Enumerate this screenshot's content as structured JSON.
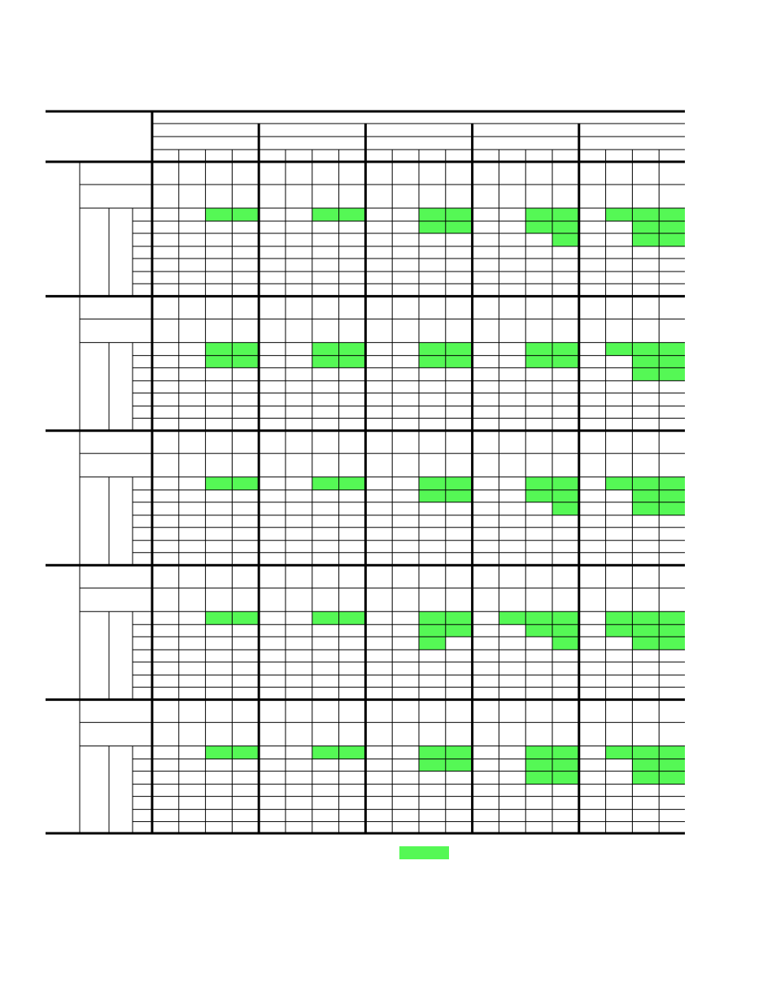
{
  "colors": {
    "highlight": "#55F855",
    "grid_line": "#000000",
    "background": "#FFFFFF"
  },
  "table": {
    "column_groups": 5,
    "sub_columns_per_group": 4,
    "row_blocks": [
      {
        "highlighted": [
          [
            0,
            2
          ],
          [
            0,
            3
          ],
          [
            0,
            6
          ],
          [
            0,
            7
          ],
          [
            0,
            10
          ],
          [
            0,
            11
          ],
          [
            0,
            14
          ],
          [
            0,
            15
          ],
          [
            0,
            17
          ],
          [
            0,
            18
          ],
          [
            0,
            19
          ],
          [
            1,
            10
          ],
          [
            1,
            11
          ],
          [
            1,
            14
          ],
          [
            1,
            15
          ],
          [
            1,
            18
          ],
          [
            1,
            19
          ],
          [
            2,
            15
          ],
          [
            2,
            18
          ],
          [
            2,
            19
          ]
        ]
      },
      {
        "highlighted": [
          [
            0,
            2
          ],
          [
            0,
            3
          ],
          [
            0,
            6
          ],
          [
            0,
            7
          ],
          [
            0,
            10
          ],
          [
            0,
            11
          ],
          [
            0,
            14
          ],
          [
            0,
            15
          ],
          [
            0,
            17
          ],
          [
            0,
            18
          ],
          [
            0,
            19
          ],
          [
            1,
            2
          ],
          [
            1,
            3
          ],
          [
            1,
            6
          ],
          [
            1,
            7
          ],
          [
            1,
            10
          ],
          [
            1,
            11
          ],
          [
            1,
            14
          ],
          [
            1,
            15
          ],
          [
            1,
            18
          ],
          [
            1,
            19
          ],
          [
            2,
            18
          ],
          [
            2,
            19
          ]
        ]
      },
      {
        "highlighted": [
          [
            0,
            2
          ],
          [
            0,
            3
          ],
          [
            0,
            6
          ],
          [
            0,
            7
          ],
          [
            0,
            10
          ],
          [
            0,
            11
          ],
          [
            0,
            14
          ],
          [
            0,
            15
          ],
          [
            0,
            17
          ],
          [
            0,
            18
          ],
          [
            0,
            19
          ],
          [
            1,
            10
          ],
          [
            1,
            11
          ],
          [
            1,
            14
          ],
          [
            1,
            15
          ],
          [
            1,
            18
          ],
          [
            1,
            19
          ],
          [
            2,
            15
          ],
          [
            2,
            18
          ],
          [
            2,
            19
          ]
        ]
      },
      {
        "highlighted": [
          [
            0,
            2
          ],
          [
            0,
            3
          ],
          [
            0,
            6
          ],
          [
            0,
            7
          ],
          [
            0,
            10
          ],
          [
            0,
            11
          ],
          [
            0,
            13
          ],
          [
            0,
            14
          ],
          [
            0,
            15
          ],
          [
            0,
            17
          ],
          [
            0,
            18
          ],
          [
            0,
            19
          ],
          [
            1,
            10
          ],
          [
            1,
            11
          ],
          [
            1,
            14
          ],
          [
            1,
            15
          ],
          [
            1,
            17
          ],
          [
            1,
            18
          ],
          [
            1,
            19
          ],
          [
            2,
            10
          ],
          [
            2,
            15
          ],
          [
            2,
            18
          ],
          [
            2,
            19
          ]
        ]
      },
      {
        "highlighted": [
          [
            0,
            2
          ],
          [
            0,
            3
          ],
          [
            0,
            6
          ],
          [
            0,
            7
          ],
          [
            0,
            10
          ],
          [
            0,
            11
          ],
          [
            0,
            14
          ],
          [
            0,
            15
          ],
          [
            0,
            17
          ],
          [
            0,
            18
          ],
          [
            0,
            19
          ],
          [
            1,
            10
          ],
          [
            1,
            11
          ],
          [
            1,
            14
          ],
          [
            1,
            15
          ],
          [
            1,
            18
          ],
          [
            1,
            19
          ],
          [
            2,
            14
          ],
          [
            2,
            15
          ],
          [
            2,
            18
          ],
          [
            2,
            19
          ]
        ]
      }
    ]
  },
  "legend": {
    "highlight_swatch_color": "#55F855"
  }
}
